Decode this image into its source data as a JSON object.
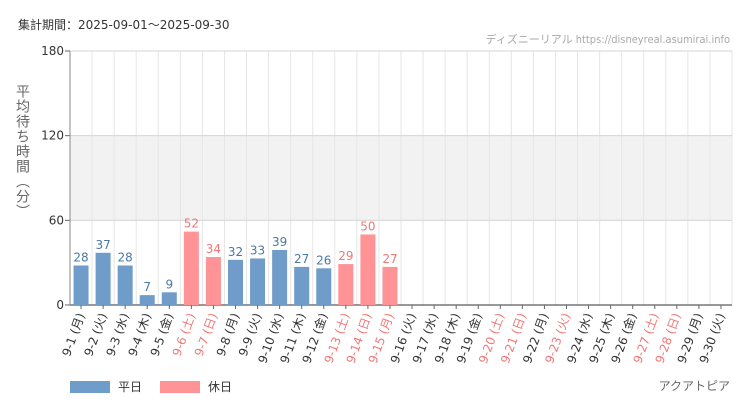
{
  "header": {
    "period_label": "集計期間：2025-09-01～2025-09-30",
    "watermark": "ディズニーリアル https://disneyreal.asumirai.info"
  },
  "footer": {
    "facility": "アクアトピア"
  },
  "colors": {
    "weekday": "#6f9cc9",
    "holiday": "#ff9396",
    "weekday_text": "#4a78a8",
    "holiday_text": "#f07878",
    "band": "#f2f2f2",
    "grid": "#e6e6e6",
    "axis_text": "#333333"
  },
  "chart_data": {
    "type": "bar",
    "ylabel": "平均待ち時間（分）",
    "ylim": [
      0,
      180
    ],
    "yticks": [
      0,
      60,
      120,
      180
    ],
    "shaded_band": [
      60,
      120
    ],
    "grid": true,
    "legend_position": "bottom-left",
    "legend": [
      {
        "label": "平日",
        "category": "weekday"
      },
      {
        "label": "休日",
        "category": "holiday"
      }
    ],
    "categories": [
      "9-1 (月)",
      "9-2 (火)",
      "9-3 (水)",
      "9-4 (木)",
      "9-5 (金)",
      "9-6 (土)",
      "9-7 (日)",
      "9-8 (月)",
      "9-9 (火)",
      "9-10 (水)",
      "9-11 (木)",
      "9-12 (金)",
      "9-13 (土)",
      "9-14 (日)",
      "9-15 (月)",
      "9-16 (火)",
      "9-17 (水)",
      "9-18 (木)",
      "9-19 (金)",
      "9-20 (土)",
      "9-21 (日)",
      "9-22 (月)",
      "9-23 (火)",
      "9-24 (水)",
      "9-25 (木)",
      "9-26 (金)",
      "9-27 (土)",
      "9-28 (日)",
      "9-29 (月)",
      "9-30 (火)"
    ],
    "day_types": [
      "weekday",
      "weekday",
      "weekday",
      "weekday",
      "weekday",
      "holiday",
      "holiday",
      "weekday",
      "weekday",
      "weekday",
      "weekday",
      "weekday",
      "holiday",
      "holiday",
      "holiday",
      "weekday",
      "weekday",
      "weekday",
      "weekday",
      "holiday",
      "holiday",
      "weekday",
      "holiday",
      "weekday",
      "weekday",
      "weekday",
      "holiday",
      "holiday",
      "weekday",
      "weekday"
    ],
    "values": [
      28,
      37,
      28,
      7,
      9,
      52,
      34,
      32,
      33,
      39,
      27,
      26,
      29,
      50,
      27,
      null,
      null,
      null,
      null,
      null,
      null,
      null,
      null,
      null,
      null,
      null,
      null,
      null,
      null,
      null
    ]
  }
}
